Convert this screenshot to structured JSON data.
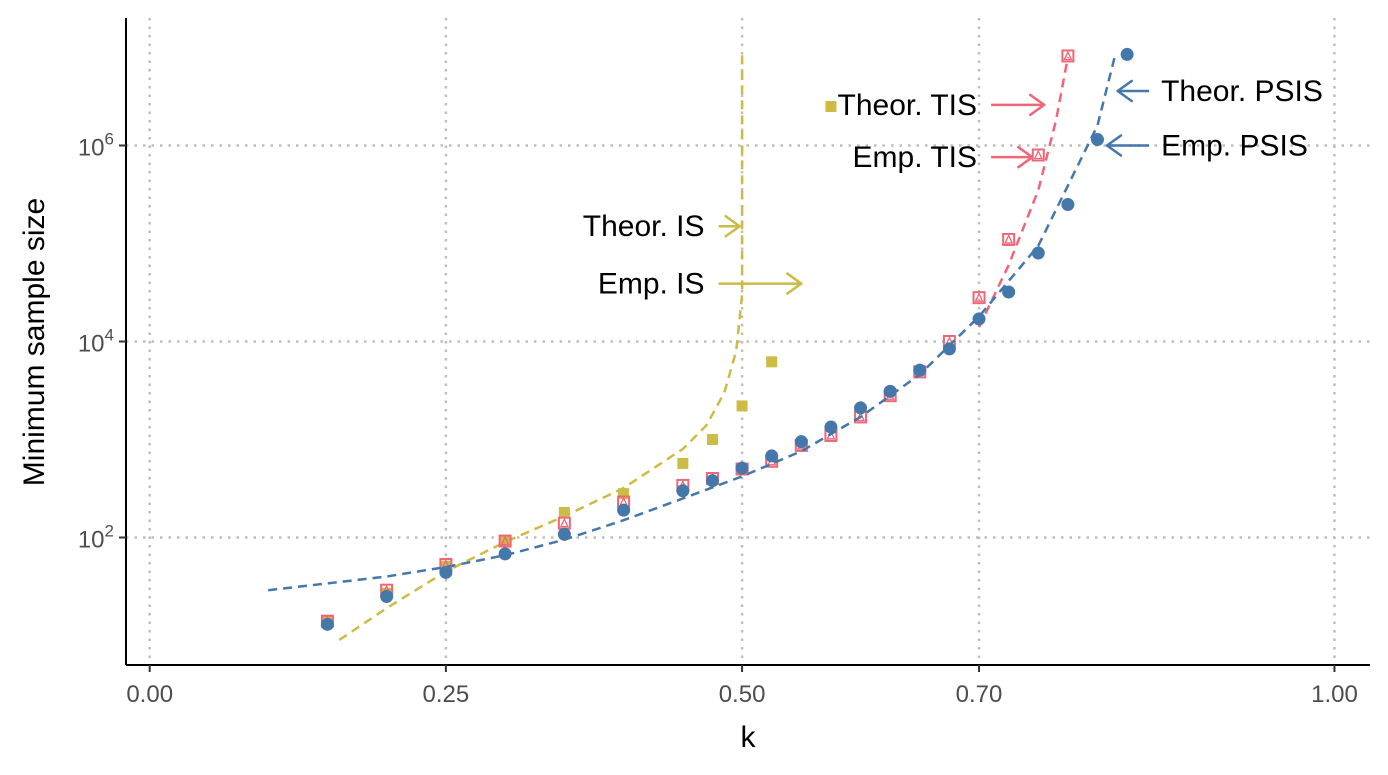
{
  "chart_data": {
    "type": "scatter",
    "xlabel": "k",
    "ylabel": "Minimum sample size",
    "y_scale": "log10",
    "xlim": [
      -0.02,
      1.03
    ],
    "ylim": [
      5,
      20000000
    ],
    "grid": true,
    "grid_style": "dotted",
    "x_tick_values": [
      0.0,
      0.25,
      0.5,
      0.7,
      1.0
    ],
    "x_tick_labels": [
      "0.00",
      "0.25",
      "0.50",
      "0.70",
      "1.00"
    ],
    "y_ticks": [
      {
        "value": 100,
        "base": "10",
        "exp": "2"
      },
      {
        "value": 10000,
        "base": "10",
        "exp": "4"
      },
      {
        "value": 1000000,
        "base": "10",
        "exp": "6"
      }
    ],
    "colors": {
      "is": "#ccbb44",
      "tis": "#ee6677",
      "psis": "#4477aa",
      "grid": "#bebebe",
      "axis": "#000000"
    },
    "series": [
      {
        "name": "Emp. IS",
        "kind": "points",
        "marker": "square",
        "color": "#ccbb44",
        "x": [
          0.15,
          0.2,
          0.25,
          0.3,
          0.35,
          0.4,
          0.45,
          0.475,
          0.5,
          0.525,
          0.575
        ],
        "y": [
          14,
          27,
          51,
          92,
          180,
          280,
          570,
          1000,
          2200,
          6200,
          2500000
        ]
      },
      {
        "name": "Theor. IS",
        "kind": "line",
        "color": "#ccbb44",
        "x": [
          0.16,
          0.2,
          0.25,
          0.3,
          0.35,
          0.4,
          0.45,
          0.47,
          0.485,
          0.495,
          0.5,
          0.5
        ],
        "y": [
          9,
          19,
          45,
          90,
          165,
          320,
          800,
          1400,
          3000,
          8000,
          30000,
          9000000
        ]
      },
      {
        "name": "Emp. TIS",
        "kind": "points",
        "marker": "open-square",
        "color": "#ee6677",
        "x": [
          0.15,
          0.2,
          0.25,
          0.3,
          0.35,
          0.4,
          0.45,
          0.475,
          0.5,
          0.525,
          0.55,
          0.575,
          0.6,
          0.625,
          0.65,
          0.675,
          0.7,
          0.725,
          0.75,
          0.775
        ],
        "y": [
          14,
          29,
          53,
          92,
          140,
          230,
          340,
          400,
          500,
          600,
          870,
          1100,
          1700,
          2800,
          4900,
          10000,
          28000,
          110000,
          800000,
          8200000
        ]
      },
      {
        "name": "Theor. TIS",
        "kind": "line",
        "color": "#ee6677",
        "x": [
          0.7,
          0.725,
          0.75,
          0.765,
          0.775
        ],
        "y": [
          14000,
          60000,
          350000,
          1800000,
          8000000
        ]
      },
      {
        "name": "Emp. PSIS",
        "kind": "points",
        "marker": "circle",
        "color": "#4477aa",
        "x": [
          0.15,
          0.2,
          0.25,
          0.3,
          0.35,
          0.4,
          0.45,
          0.475,
          0.5,
          0.525,
          0.55,
          0.575,
          0.6,
          0.625,
          0.65,
          0.675,
          0.7,
          0.725,
          0.75,
          0.775,
          0.8,
          0.825
        ],
        "y": [
          13,
          25,
          44,
          68,
          108,
          190,
          300,
          380,
          510,
          680,
          950,
          1340,
          2100,
          3100,
          5100,
          8400,
          17000,
          32000,
          80000,
          250000,
          1150000,
          8500000
        ]
      },
      {
        "name": "Theor. PSIS",
        "kind": "line",
        "color": "#4477aa",
        "x": [
          0.1,
          0.15,
          0.2,
          0.25,
          0.3,
          0.35,
          0.4,
          0.45,
          0.5,
          0.55,
          0.6,
          0.65,
          0.7,
          0.75,
          0.8,
          0.815
        ],
        "y": [
          29,
          34,
          40,
          50,
          66,
          95,
          150,
          250,
          420,
          760,
          1700,
          4600,
          18000,
          95000,
          1600000,
          8500000
        ]
      }
    ],
    "annotations": [
      {
        "text": "Theor. TIS",
        "color": "#ee6677",
        "side": "left",
        "label_at": [
          0.7,
          2600000
        ],
        "target": [
          0.755,
          2600000
        ]
      },
      {
        "text": "Emp. TIS",
        "color": "#ee6677",
        "side": "left",
        "label_at": [
          0.7,
          760000
        ],
        "target": [
          0.745,
          760000
        ]
      },
      {
        "text": "Theor. IS",
        "color": "#ccbb44",
        "side": "left",
        "label_at": [
          0.47,
          150000
        ],
        "target": [
          0.498,
          150000
        ]
      },
      {
        "text": "Emp. IS",
        "color": "#ccbb44",
        "side": "left",
        "label_at": [
          0.47,
          39000
        ],
        "target": [
          0.55,
          39000
        ]
      },
      {
        "text": "Theor. PSIS",
        "color": "#4477aa",
        "side": "right",
        "label_at": [
          0.852,
          3600000
        ],
        "target": [
          0.817,
          3600000
        ]
      },
      {
        "text": "Emp. PSIS",
        "color": "#4477aa",
        "side": "right",
        "label_at": [
          0.852,
          1000000
        ],
        "target": [
          0.808,
          1000000
        ]
      }
    ]
  }
}
